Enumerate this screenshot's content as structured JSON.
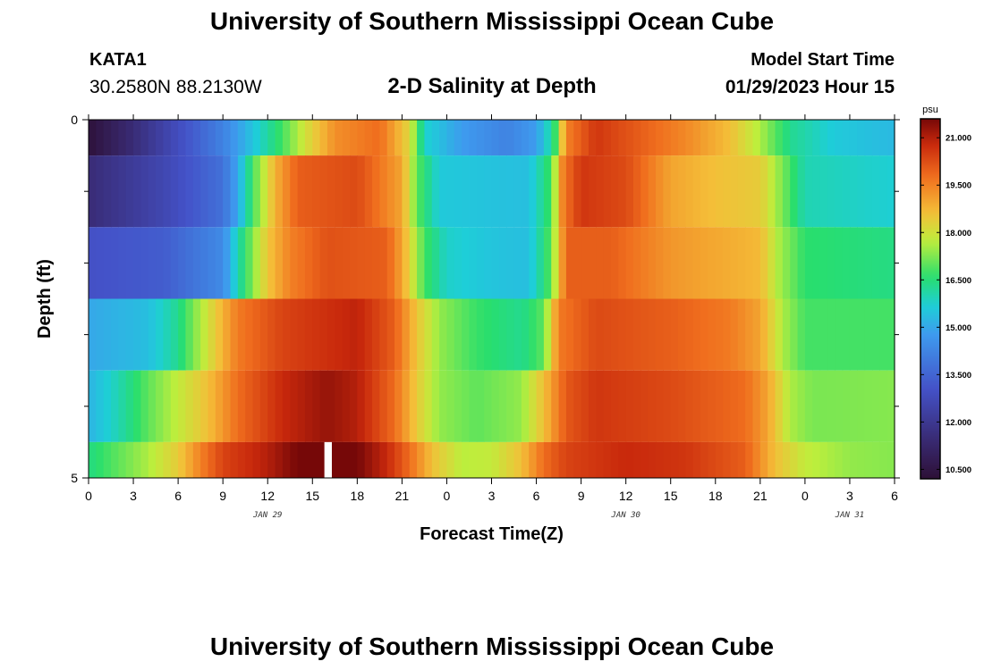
{
  "page": {
    "title_top": "University of Southern Mississippi Ocean Cube",
    "title_bottom": "University of Southern Mississippi Ocean Cube",
    "station_id": "KATA1",
    "station_coords": "30.2580N  88.2130W",
    "plot_title": "2-D Salinity at Depth",
    "model_label": "Model Start Time",
    "model_time": "01/29/2023 Hour 15"
  },
  "chart_data": {
    "type": "heatmap",
    "title": "2-D Salinity at Depth",
    "xlabel": "Forecast Time(Z)",
    "ylabel": "Depth (ft)",
    "x_hours_range": [
      0,
      54
    ],
    "x_tick_hours": [
      0,
      3,
      6,
      9,
      12,
      15,
      18,
      21,
      24,
      27,
      30,
      33,
      36,
      39,
      42,
      45,
      48,
      51,
      54
    ],
    "x_tick_labels": [
      "0",
      "3",
      "6",
      "9",
      "12",
      "15",
      "18",
      "21",
      "0",
      "3",
      "6",
      "9",
      "12",
      "15",
      "18",
      "21",
      "0",
      "3",
      "6"
    ],
    "date_labels": [
      {
        "hour": 12,
        "text": "JAN 29"
      },
      {
        "hour": 36,
        "text": "JAN 30"
      },
      {
        "hour": 51,
        "text": "JAN 31"
      }
    ],
    "y_range": [
      0,
      5
    ],
    "y_tick_labels": [
      {
        "value": 0,
        "text": "0"
      },
      {
        "value": 5,
        "text": "5"
      }
    ],
    "y_minor_ticks": [
      1,
      2,
      3,
      4
    ],
    "colorbar": {
      "unit": "psu",
      "min": 10.2,
      "max": 21.6,
      "ticks": [
        10.5,
        12.0,
        13.5,
        15.0,
        16.5,
        18.0,
        19.5,
        21.0
      ],
      "tick_labels": [
        "10.500",
        "12.000",
        "13.500",
        "15.000",
        "16.500",
        "18.000",
        "19.500",
        "21.000"
      ]
    },
    "layers": [
      {
        "depth_top": 0,
        "depth_bottom": 0.5,
        "keyframes": [
          [
            0,
            10.3
          ],
          [
            3,
            11.5
          ],
          [
            9,
            14.2
          ],
          [
            11,
            15.5
          ],
          [
            13,
            16.8
          ],
          [
            14.5,
            18.0
          ],
          [
            16.5,
            19.3
          ],
          [
            19.5,
            19.8
          ],
          [
            21.5,
            18.2
          ],
          [
            22.5,
            15.8
          ],
          [
            25,
            14.8
          ],
          [
            28,
            14.2
          ],
          [
            30,
            14.8
          ],
          [
            31.2,
            16.5
          ],
          [
            32,
            19.5
          ],
          [
            34,
            20.6
          ],
          [
            37,
            20.0
          ],
          [
            40,
            19.4
          ],
          [
            43,
            18.6
          ],
          [
            45,
            17.6
          ],
          [
            47,
            16.3
          ],
          [
            50,
            15.6
          ],
          [
            54,
            15.3
          ]
        ]
      },
      {
        "depth_top": 0.5,
        "depth_bottom": 1.5,
        "keyframes": [
          [
            0,
            11.5
          ],
          [
            5,
            12.6
          ],
          [
            9,
            13.8
          ],
          [
            10,
            15.0
          ],
          [
            11,
            16.8
          ],
          [
            12.5,
            18.8
          ],
          [
            14,
            20.0
          ],
          [
            18,
            20.3
          ],
          [
            21,
            19.0
          ],
          [
            22,
            17.0
          ],
          [
            23.5,
            15.6
          ],
          [
            26,
            15.5
          ],
          [
            29.5,
            15.4
          ],
          [
            31,
            16.8
          ],
          [
            31.8,
            19.6
          ],
          [
            33,
            20.6
          ],
          [
            36,
            20.3
          ],
          [
            39,
            19.0
          ],
          [
            42,
            18.6
          ],
          [
            45,
            18.4
          ],
          [
            46.5,
            17.2
          ],
          [
            48,
            16.0
          ],
          [
            54,
            15.7
          ]
        ]
      },
      {
        "depth_top": 1.5,
        "depth_bottom": 2.5,
        "keyframes": [
          [
            0,
            13.0
          ],
          [
            5,
            13.3
          ],
          [
            9,
            14.4
          ],
          [
            10,
            16.0
          ],
          [
            11,
            17.3
          ],
          [
            12,
            18.5
          ],
          [
            13.5,
            19.5
          ],
          [
            16,
            20.2
          ],
          [
            20,
            20.0
          ],
          [
            21,
            19.0
          ],
          [
            22.5,
            16.8
          ],
          [
            24,
            15.8
          ],
          [
            27,
            15.5
          ],
          [
            29.5,
            15.4
          ],
          [
            31,
            17.0
          ],
          [
            32,
            20.0
          ],
          [
            35,
            20.0
          ],
          [
            39,
            19.2
          ],
          [
            45,
            18.7
          ],
          [
            46.2,
            17.6
          ],
          [
            48,
            16.6
          ],
          [
            54,
            16.4
          ]
        ]
      },
      {
        "depth_top": 2.5,
        "depth_bottom": 3.5,
        "keyframes": [
          [
            0,
            15.0
          ],
          [
            4,
            15.4
          ],
          [
            6,
            16.3
          ],
          [
            7,
            17.2
          ],
          [
            8.5,
            18.4
          ],
          [
            10,
            19.6
          ],
          [
            13,
            20.4
          ],
          [
            18,
            20.9
          ],
          [
            20.5,
            20.0
          ],
          [
            22,
            18.5
          ],
          [
            23.5,
            17.4
          ],
          [
            26,
            16.7
          ],
          [
            29,
            16.3
          ],
          [
            30.5,
            17.0
          ],
          [
            31.5,
            19.6
          ],
          [
            34,
            20.3
          ],
          [
            39,
            20.0
          ],
          [
            43,
            19.6
          ],
          [
            45,
            19.0
          ],
          [
            46.5,
            17.6
          ],
          [
            48,
            16.8
          ],
          [
            54,
            16.8
          ]
        ]
      },
      {
        "depth_top": 3.5,
        "depth_bottom": 4.5,
        "keyframes": [
          [
            0,
            15.2
          ],
          [
            2,
            16.0
          ],
          [
            4,
            17.0
          ],
          [
            6,
            17.8
          ],
          [
            8,
            18.6
          ],
          [
            10,
            19.8
          ],
          [
            13,
            20.8
          ],
          [
            16,
            21.3
          ],
          [
            18,
            21.0
          ],
          [
            20.5,
            19.8
          ],
          [
            22,
            18.4
          ],
          [
            23.5,
            17.4
          ],
          [
            26,
            17.0
          ],
          [
            29,
            17.4
          ],
          [
            30.5,
            18.6
          ],
          [
            32,
            20.1
          ],
          [
            34,
            20.6
          ],
          [
            39,
            20.3
          ],
          [
            44,
            19.8
          ],
          [
            45.5,
            19.0
          ],
          [
            47,
            17.6
          ],
          [
            48.5,
            17.2
          ],
          [
            54,
            17.3
          ]
        ]
      },
      {
        "depth_top": 4.5,
        "depth_bottom": 5.0,
        "keyframes": [
          [
            0,
            16.4
          ],
          [
            2,
            17.0
          ],
          [
            4,
            17.6
          ],
          [
            6,
            18.4
          ],
          [
            7.5,
            19.5
          ],
          [
            9,
            20.4
          ],
          [
            12,
            21.0
          ],
          [
            14,
            21.6
          ],
          [
            15.8,
            21.7
          ],
          [
            18,
            21.6
          ],
          [
            20,
            20.8
          ],
          [
            21.5,
            19.8
          ],
          [
            23,
            18.6
          ],
          [
            25,
            17.7
          ],
          [
            27,
            17.8
          ],
          [
            29,
            18.6
          ],
          [
            30.5,
            19.8
          ],
          [
            32,
            20.4
          ],
          [
            36,
            20.8
          ],
          [
            40,
            20.6
          ],
          [
            44,
            20.0
          ],
          [
            46,
            18.6
          ],
          [
            48,
            17.8
          ],
          [
            51,
            17.4
          ],
          [
            54,
            17.3
          ]
        ]
      }
    ],
    "missing_data": [
      {
        "depth_top": 4.5,
        "depth_bottom": 5.0,
        "hour_start": 15.8,
        "hour_end": 16.3
      }
    ]
  }
}
